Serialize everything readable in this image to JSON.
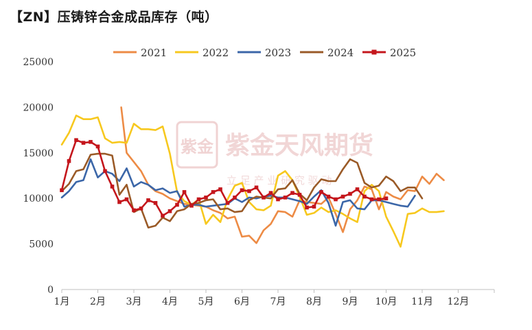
{
  "chart_data": {
    "type": "line",
    "title": "【ZN】压铸锌合金成品库存（吨）",
    "xlabel": "",
    "ylabel": "",
    "ylim": [
      0,
      25000
    ],
    "xlim": [
      0,
      12
    ],
    "y_ticks": [
      "0",
      "5000",
      "10000",
      "15000",
      "20000",
      "25000"
    ],
    "x_ticks": [
      "1月",
      "2月",
      "3月",
      "4月",
      "5月",
      "6月",
      "7月",
      "8月",
      "9月",
      "10月",
      "11月",
      "12月"
    ],
    "grid": false,
    "legend_position": "top",
    "watermark": {
      "text": "紫金天风期货",
      "subtext": "立 足 产 业   研 究 驱 动",
      "logo_text": "紫金"
    },
    "series": [
      {
        "name": "2021",
        "color": "#ED8B45",
        "marker": "none",
        "points": [
          [
            1.65,
            20000
          ],
          [
            1.8,
            15000
          ],
          [
            2.0,
            14000
          ],
          [
            2.2,
            13000
          ],
          [
            2.4,
            11500
          ],
          [
            2.6,
            10800
          ],
          [
            2.8,
            10500
          ],
          [
            3.0,
            10000
          ],
          [
            3.2,
            9700
          ],
          [
            3.4,
            9400
          ],
          [
            3.6,
            9300
          ],
          [
            3.8,
            9200
          ],
          [
            4.0,
            9100
          ],
          [
            4.2,
            8700
          ],
          [
            4.4,
            8400
          ],
          [
            4.6,
            7800
          ],
          [
            4.8,
            8000
          ],
          [
            5.0,
            5800
          ],
          [
            5.2,
            5900
          ],
          [
            5.4,
            5100
          ],
          [
            5.6,
            6500
          ],
          [
            5.8,
            7200
          ],
          [
            6.0,
            8600
          ],
          [
            6.2,
            8500
          ],
          [
            6.4,
            8000
          ],
          [
            6.6,
            9800
          ],
          [
            6.8,
            9600
          ],
          [
            7.0,
            9500
          ],
          [
            7.2,
            9400
          ],
          [
            7.4,
            10100
          ],
          [
            7.6,
            8300
          ],
          [
            7.8,
            6300
          ],
          [
            8.0,
            8800
          ],
          [
            8.2,
            9800
          ],
          [
            8.4,
            11300
          ],
          [
            8.6,
            11000
          ],
          [
            8.8,
            8800
          ],
          [
            9.0,
            10700
          ],
          [
            9.2,
            10200
          ],
          [
            9.4,
            9900
          ],
          [
            9.6,
            10900
          ],
          [
            9.8,
            10800
          ],
          [
            10.0,
            12400
          ],
          [
            10.2,
            11600
          ],
          [
            10.4,
            12700
          ],
          [
            10.6,
            12000
          ]
        ]
      },
      {
        "name": "2022",
        "color": "#F7C81E",
        "marker": "none",
        "points": [
          [
            0.0,
            15900
          ],
          [
            0.2,
            17200
          ],
          [
            0.4,
            19100
          ],
          [
            0.6,
            18700
          ],
          [
            0.8,
            18700
          ],
          [
            1.0,
            18900
          ],
          [
            1.2,
            16600
          ],
          [
            1.4,
            16100
          ],
          [
            1.6,
            16200
          ],
          [
            1.8,
            16100
          ],
          [
            2.0,
            18200
          ],
          [
            2.2,
            17600
          ],
          [
            2.4,
            17600
          ],
          [
            2.6,
            17500
          ],
          [
            2.8,
            17900
          ],
          [
            3.0,
            14900
          ],
          [
            3.2,
            10700
          ],
          [
            3.4,
            9700
          ],
          [
            3.6,
            9300
          ],
          [
            3.8,
            9900
          ],
          [
            4.0,
            7200
          ],
          [
            4.2,
            8200
          ],
          [
            4.4,
            7400
          ],
          [
            4.6,
            9900
          ],
          [
            4.8,
            11400
          ],
          [
            5.0,
            11700
          ],
          [
            5.2,
            9600
          ],
          [
            5.4,
            8800
          ],
          [
            5.6,
            8700
          ],
          [
            5.8,
            9200
          ],
          [
            6.0,
            12500
          ],
          [
            6.2,
            13000
          ],
          [
            6.4,
            12000
          ],
          [
            6.6,
            10200
          ],
          [
            6.8,
            8200
          ],
          [
            7.0,
            8400
          ],
          [
            7.2,
            9000
          ],
          [
            7.4,
            8500
          ],
          [
            7.6,
            8700
          ],
          [
            7.8,
            8300
          ],
          [
            8.0,
            7800
          ],
          [
            8.2,
            7400
          ],
          [
            8.4,
            10800
          ],
          [
            8.6,
            11500
          ],
          [
            8.8,
            10800
          ],
          [
            9.0,
            8000
          ],
          [
            9.2,
            6400
          ],
          [
            9.4,
            4700
          ],
          [
            9.6,
            8300
          ],
          [
            9.8,
            8400
          ],
          [
            10.0,
            8900
          ],
          [
            10.2,
            8500
          ],
          [
            10.4,
            8500
          ],
          [
            10.6,
            8600
          ]
        ]
      },
      {
        "name": "2023",
        "color": "#3B66A8",
        "marker": "none",
        "points": [
          [
            0.0,
            10100
          ],
          [
            0.2,
            10800
          ],
          [
            0.4,
            11800
          ],
          [
            0.6,
            12000
          ],
          [
            0.8,
            14300
          ],
          [
            1.0,
            12300
          ],
          [
            1.2,
            13000
          ],
          [
            1.4,
            12700
          ],
          [
            1.6,
            11900
          ],
          [
            1.8,
            13300
          ],
          [
            2.0,
            11300
          ],
          [
            2.2,
            11800
          ],
          [
            2.4,
            11500
          ],
          [
            2.6,
            10900
          ],
          [
            2.8,
            11100
          ],
          [
            3.0,
            10600
          ],
          [
            3.2,
            10800
          ],
          [
            3.4,
            9100
          ],
          [
            3.6,
            9300
          ],
          [
            3.8,
            9300
          ],
          [
            4.0,
            9100
          ],
          [
            4.2,
            9200
          ],
          [
            4.4,
            9300
          ],
          [
            4.6,
            9400
          ],
          [
            4.8,
            10000
          ],
          [
            5.0,
            9600
          ],
          [
            5.2,
            10100
          ],
          [
            5.4,
            10000
          ],
          [
            5.6,
            10200
          ],
          [
            5.8,
            10300
          ],
          [
            6.0,
            10100
          ],
          [
            6.2,
            10100
          ],
          [
            6.4,
            9900
          ],
          [
            6.6,
            9700
          ],
          [
            6.8,
            9400
          ],
          [
            7.0,
            10200
          ],
          [
            7.2,
            10900
          ],
          [
            7.4,
            9500
          ],
          [
            7.6,
            7000
          ],
          [
            7.8,
            9600
          ],
          [
            8.0,
            9800
          ],
          [
            8.2,
            8900
          ],
          [
            8.4,
            8800
          ],
          [
            8.6,
            9800
          ],
          [
            8.8,
            9800
          ],
          [
            9.0,
            9600
          ],
          [
            9.2,
            9400
          ],
          [
            9.4,
            9200
          ],
          [
            9.6,
            9100
          ],
          [
            9.8,
            10300
          ]
        ]
      },
      {
        "name": "2024",
        "color": "#9A5A27",
        "marker": "none",
        "points": [
          [
            0.0,
            10800
          ],
          [
            0.2,
            11600
          ],
          [
            0.4,
            13000
          ],
          [
            0.6,
            13200
          ],
          [
            0.8,
            14800
          ],
          [
            1.0,
            14900
          ],
          [
            1.2,
            14900
          ],
          [
            1.4,
            14700
          ],
          [
            1.6,
            10400
          ],
          [
            1.8,
            11500
          ],
          [
            2.0,
            8500
          ],
          [
            2.2,
            8900
          ],
          [
            2.4,
            6800
          ],
          [
            2.6,
            7000
          ],
          [
            2.8,
            7900
          ],
          [
            3.0,
            7500
          ],
          [
            3.2,
            8600
          ],
          [
            3.4,
            8800
          ],
          [
            3.6,
            9400
          ],
          [
            3.8,
            9500
          ],
          [
            4.0,
            9800
          ],
          [
            4.2,
            9900
          ],
          [
            4.4,
            8800
          ],
          [
            4.6,
            8900
          ],
          [
            4.8,
            8500
          ],
          [
            5.0,
            8600
          ],
          [
            5.2,
            9800
          ],
          [
            5.4,
            10200
          ],
          [
            5.6,
            10100
          ],
          [
            5.8,
            10000
          ],
          [
            6.0,
            11000
          ],
          [
            6.2,
            11100
          ],
          [
            6.4,
            12000
          ],
          [
            6.6,
            10500
          ],
          [
            6.8,
            9800
          ],
          [
            7.0,
            11200
          ],
          [
            7.2,
            12100
          ],
          [
            7.4,
            11900
          ],
          [
            7.6,
            11900
          ],
          [
            7.8,
            13200
          ],
          [
            8.0,
            14300
          ],
          [
            8.2,
            13900
          ],
          [
            8.4,
            11700
          ],
          [
            8.6,
            11200
          ],
          [
            8.8,
            11400
          ],
          [
            9.0,
            12400
          ],
          [
            9.2,
            11900
          ],
          [
            9.4,
            10800
          ],
          [
            9.6,
            11200
          ],
          [
            9.8,
            11200
          ],
          [
            10.0,
            10000
          ]
        ]
      },
      {
        "name": "2025",
        "color": "#C4161C",
        "marker": "square",
        "points": [
          [
            0.0,
            10900
          ],
          [
            0.2,
            14100
          ],
          [
            0.4,
            16400
          ],
          [
            0.6,
            16100
          ],
          [
            0.8,
            16200
          ],
          [
            1.0,
            15700
          ],
          [
            1.2,
            13000
          ],
          [
            1.4,
            11300
          ],
          [
            1.6,
            9600
          ],
          [
            1.8,
            9900
          ],
          [
            2.0,
            8700
          ],
          [
            2.2,
            8900
          ],
          [
            2.4,
            9800
          ],
          [
            2.6,
            9500
          ],
          [
            2.8,
            8100
          ],
          [
            3.0,
            8600
          ],
          [
            3.2,
            9300
          ],
          [
            3.4,
            10700
          ],
          [
            3.6,
            9200
          ],
          [
            3.8,
            9900
          ],
          [
            4.0,
            10100
          ],
          [
            4.2,
            10700
          ],
          [
            4.4,
            11000
          ],
          [
            4.6,
            9500
          ],
          [
            4.8,
            10100
          ],
          [
            5.0,
            10900
          ],
          [
            5.2,
            10800
          ],
          [
            5.4,
            11200
          ],
          [
            5.6,
            10100
          ],
          [
            5.8,
            10600
          ],
          [
            6.0,
            9900
          ],
          [
            6.2,
            10100
          ],
          [
            6.4,
            10600
          ],
          [
            6.6,
            10400
          ],
          [
            6.8,
            9000
          ],
          [
            7.0,
            9100
          ],
          [
            7.2,
            10700
          ],
          [
            7.4,
            10200
          ],
          [
            7.6,
            9900
          ],
          [
            7.8,
            10200
          ],
          [
            8.0,
            10500
          ],
          [
            8.2,
            11000
          ],
          [
            8.4,
            10200
          ],
          [
            8.6,
            9900
          ],
          [
            8.8,
            9900
          ],
          [
            9.0,
            10000
          ]
        ]
      }
    ]
  }
}
